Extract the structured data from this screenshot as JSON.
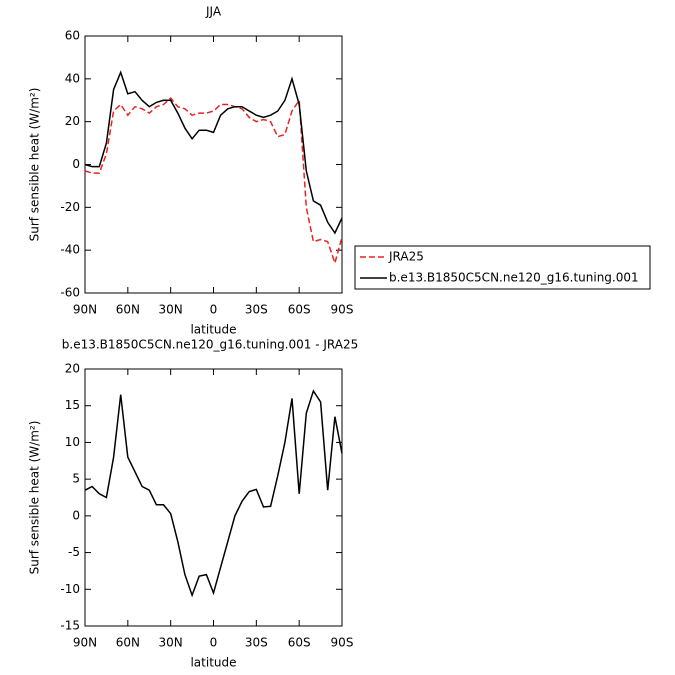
{
  "chart_data": [
    {
      "type": "line",
      "title": "JJA",
      "xlabel": "latitude",
      "ylabel": "Surf sensible heat (W/m²)",
      "x": [
        90,
        85,
        80,
        75,
        70,
        65,
        60,
        55,
        50,
        45,
        40,
        35,
        30,
        25,
        20,
        15,
        10,
        5,
        0,
        -5,
        -10,
        -15,
        -20,
        -25,
        -30,
        -35,
        -40,
        -45,
        -50,
        -55,
        -60,
        -65,
        -70,
        -75,
        -80,
        -85,
        -90
      ],
      "series": [
        {
          "name": "JRA25",
          "color": "#e8231f",
          "linestyle": "dashed",
          "values": [
            -3,
            -4,
            -4,
            5,
            25,
            28,
            23,
            27,
            26,
            24,
            27,
            28,
            31,
            27,
            26,
            23,
            24,
            24,
            25,
            28,
            28,
            27,
            26,
            22,
            20,
            21,
            20,
            13,
            14,
            25,
            30,
            -20,
            -36,
            -35,
            -36,
            -46,
            -34
          ]
        },
        {
          "name": "b.e13.B1850C5CN.ne120_g16.tuning.001",
          "color": "#000000",
          "linestyle": "solid",
          "values": [
            0,
            -1,
            -1,
            10,
            35,
            43,
            33,
            34,
            30,
            27,
            29,
            30,
            30,
            24,
            17,
            12,
            16,
            16,
            15,
            23,
            26,
            27,
            27,
            25,
            23,
            22,
            23,
            25,
            30,
            40,
            28,
            -3,
            -17,
            -19,
            -27,
            -32,
            -25
          ]
        }
      ],
      "xlim": [
        90,
        -90
      ],
      "xticks": [
        {
          "value": 90,
          "label": "90N"
        },
        {
          "value": 60,
          "label": "60N"
        },
        {
          "value": 30,
          "label": "30N"
        },
        0,
        {
          "value": -30,
          "label": "30S"
        },
        {
          "value": -60,
          "label": "60S"
        },
        {
          "value": -90,
          "label": "90S"
        }
      ],
      "ylim": [
        -60,
        60
      ],
      "yticks": [
        -60,
        -40,
        -20,
        0,
        20,
        40,
        60
      ]
    },
    {
      "type": "line",
      "title": "b.e13.B1850C5CN.ne120_g16.tuning.001 - JRA25",
      "xlabel": "latitude",
      "ylabel": "Surf sensible heat (W/m²)",
      "x": [
        90,
        85,
        80,
        75,
        70,
        65,
        60,
        55,
        50,
        45,
        40,
        35,
        30,
        25,
        20,
        15,
        10,
        5,
        0,
        -5,
        -10,
        -15,
        -20,
        -25,
        -30,
        -35,
        -40,
        -45,
        -50,
        -55,
        -60,
        -65,
        -70,
        -75,
        -80,
        -85,
        -90
      ],
      "series": [
        {
          "color": "#000000",
          "linestyle": "solid",
          "values": [
            3.5,
            4,
            3,
            2.5,
            8,
            16.5,
            8,
            6,
            4,
            3.5,
            1.5,
            1.5,
            0.3,
            -3.5,
            -8,
            -10.8,
            -8.2,
            -8,
            -10.5,
            -7,
            -3.5,
            0,
            2,
            3.3,
            3.6,
            1.2,
            1.3,
            5.5,
            10,
            16,
            3,
            14,
            17,
            15.5,
            3.5,
            13.5,
            8.5
          ]
        }
      ],
      "xlim": [
        90,
        -90
      ],
      "xticks": [
        {
          "value": 90,
          "label": "90N"
        },
        {
          "value": 60,
          "label": "60N"
        },
        {
          "value": 30,
          "label": "30N"
        },
        0,
        {
          "value": -30,
          "label": "30S"
        },
        {
          "value": -60,
          "label": "60S"
        },
        {
          "value": -90,
          "label": "90S"
        }
      ],
      "ylim": [
        -15,
        20
      ],
      "yticks": [
        -15,
        -10,
        -5,
        0,
        5,
        10,
        15,
        20
      ]
    }
  ]
}
